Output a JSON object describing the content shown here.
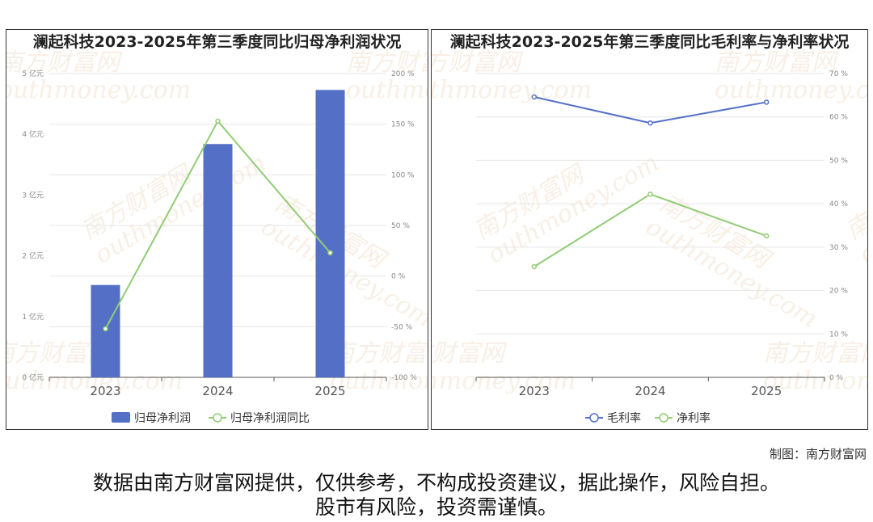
{
  "panels": {
    "left_title": "澜起科技2023-2025年第三季度同比归母净利润状况",
    "right_title": "澜起科技2023-2025年第三季度同比毛利率与净利率状况"
  },
  "credit": "制图：南方财富网",
  "disclaimer": {
    "line1": "数据由南方财富网提供，仅供参考，不构成投资建议，据此操作，风险自担。",
    "line2": "股市有风险，投资需谨慎。"
  },
  "watermark": {
    "cn": "南方财富网",
    "en": "outhmoney.com"
  },
  "colors": {
    "bar": "#5470c6",
    "line_green": "#91cc75",
    "line_blue": "#5470c6"
  },
  "chart_data": [
    {
      "type": "bar",
      "categories": [
        "2023",
        "2024",
        "2025"
      ],
      "series": [
        {
          "name": "归母净利润",
          "type": "bar",
          "values": [
            1.52,
            3.84,
            4.73
          ],
          "axis": "left"
        },
        {
          "name": "归母净利润同比",
          "type": "line",
          "values": [
            -52,
            153,
            23
          ],
          "axis": "right"
        }
      ],
      "y_left": {
        "min": 0,
        "max": 5,
        "ticks": [
          "0 亿元",
          "1 亿元",
          "2 亿元",
          "3 亿元",
          "4 亿元",
          "5 亿元"
        ]
      },
      "y_right": {
        "min": -100,
        "max": 200,
        "ticks": [
          "-100 %",
          "-50 %",
          "0 %",
          "50 %",
          "100 %",
          "150 %",
          "200 %"
        ]
      },
      "legend": "bottom-center"
    },
    {
      "type": "line",
      "categories": [
        "2023",
        "2024",
        "2025"
      ],
      "series": [
        {
          "name": "毛利率",
          "values": [
            64.6,
            58.6,
            63.4
          ],
          "color": "#5470c6"
        },
        {
          "name": "净利率",
          "values": [
            25.5,
            42.2,
            32.6
          ],
          "color": "#91cc75"
        }
      ],
      "y_right": {
        "min": 0,
        "max": 70,
        "ticks": [
          "0 %",
          "10 %",
          "20 %",
          "30 %",
          "40 %",
          "50 %",
          "60 %",
          "70 %"
        ]
      },
      "legend": "bottom-center"
    }
  ]
}
